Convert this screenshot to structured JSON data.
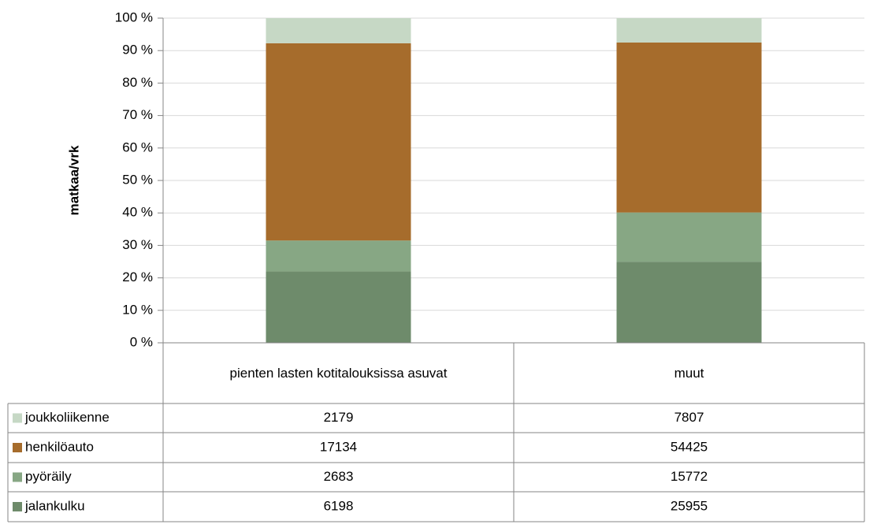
{
  "chart_data": {
    "type": "bar",
    "stack": "percent",
    "y_label": "matkaa/vrk",
    "categories": [
      "pienten lasten kotitalouksissa asuvat",
      "muut"
    ],
    "series": [
      {
        "name": "jalankulku",
        "color": "#6e8b6b",
        "values": [
          6198,
          25955
        ]
      },
      {
        "name": "pyöräily",
        "color": "#87a784",
        "values": [
          2683,
          15772
        ]
      },
      {
        "name": "henkilöauto",
        "color": "#a66c2c",
        "values": [
          17134,
          54425
        ]
      },
      {
        "name": "joukkoliikenne",
        "color": "#c6d8c5",
        "values": [
          2179,
          7807
        ]
      }
    ],
    "ylim": [
      0,
      100
    ],
    "yticks": [
      {
        "value": 0,
        "label": "0 %"
      },
      {
        "value": 10,
        "label": "10 %"
      },
      {
        "value": 20,
        "label": "20 %"
      },
      {
        "value": 30,
        "label": "30 %"
      },
      {
        "value": 40,
        "label": "40 %"
      },
      {
        "value": 50,
        "label": "50 %"
      },
      {
        "value": 60,
        "label": "60 %"
      },
      {
        "value": 70,
        "label": "70 %"
      },
      {
        "value": 80,
        "label": "80 %"
      },
      {
        "value": 90,
        "label": "90 %"
      },
      {
        "value": 100,
        "label": "100 %"
      }
    ],
    "grid": true
  }
}
